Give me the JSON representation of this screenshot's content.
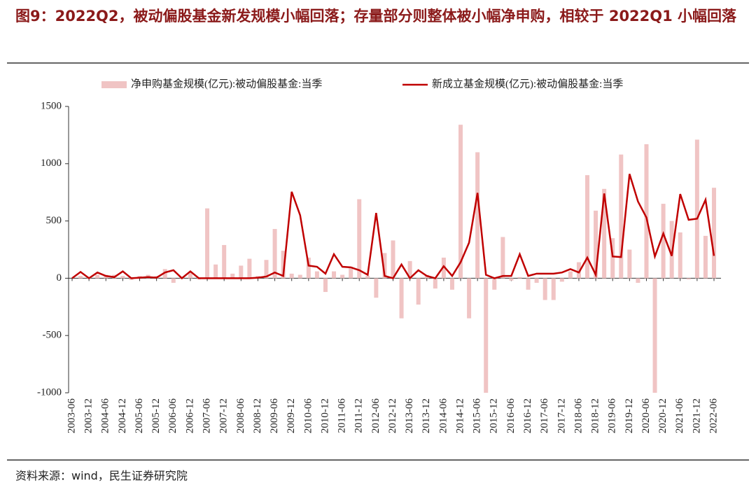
{
  "title": "图9：2022Q2，被动偏股基金新发规模小幅回落；存量部分则整体被小幅净申购，相较于 2022Q1 小幅回落",
  "source": "资料来源：wind，民生证券研究院",
  "chart_data": {
    "type": "bar-line",
    "categories": [
      "2003-06",
      null,
      "2003-12",
      null,
      "2004-06",
      null,
      "2004-12",
      null,
      "2005-06",
      null,
      "2005-12",
      null,
      "2006-06",
      null,
      "2006-12",
      null,
      "2007-06",
      null,
      "2007-12",
      null,
      "2008-06",
      null,
      "2008-12",
      null,
      "2009-06",
      null,
      "2009-12",
      null,
      "2010-06",
      null,
      "2010-12",
      null,
      "2011-06",
      null,
      "2011-12",
      null,
      "2012-06",
      null,
      "2012-12",
      null,
      "2013-06",
      null,
      "2013-12",
      null,
      "2014-06",
      null,
      "2014-12",
      null,
      "2015-06",
      null,
      "2015-12",
      null,
      "2016-06",
      null,
      "2016-12",
      null,
      "2017-06",
      null,
      "2017-12",
      null,
      "2018-06",
      null,
      "2018-12",
      null,
      "2019-06",
      null,
      "2019-12",
      null,
      "2020-06",
      null,
      "2020-12",
      null,
      "2021-06",
      null,
      "2021-12",
      null,
      "2022-06"
    ],
    "series": [
      {
        "name": "净申购基金规模(亿元):被动偏股基金:当季",
        "type": "bar",
        "color": "#f0c4c4",
        "values": [
          0,
          20,
          5,
          30,
          30,
          30,
          20,
          -15,
          20,
          30,
          20,
          80,
          -40,
          10,
          50,
          -10,
          610,
          120,
          290,
          40,
          110,
          170,
          20,
          160,
          430,
          240,
          40,
          30,
          180,
          60,
          -120,
          60,
          30,
          100,
          690,
          20,
          -170,
          220,
          330,
          -350,
          150,
          -230,
          30,
          -90,
          180,
          -100,
          1340,
          -350,
          1100,
          -1000,
          -100,
          360,
          -20,
          10,
          -100,
          -40,
          -190,
          -190,
          -30,
          60,
          140,
          900,
          590,
          780,
          350,
          1080,
          250,
          -40,
          1170,
          -1000,
          650,
          500,
          400,
          -10,
          1210,
          370,
          790
        ]
      },
      {
        "name": "新成立基金规模(亿元):被动偏股基金:当季",
        "type": "line",
        "color": "#c00000",
        "values": [
          0,
          55,
          0,
          50,
          20,
          10,
          60,
          0,
          5,
          10,
          5,
          50,
          70,
          0,
          60,
          0,
          0,
          0,
          0,
          0,
          0,
          0,
          5,
          15,
          50,
          20,
          755,
          550,
          110,
          100,
          40,
          210,
          100,
          95,
          70,
          30,
          570,
          20,
          0,
          120,
          0,
          70,
          20,
          0,
          105,
          20,
          140,
          310,
          745,
          30,
          0,
          20,
          20,
          210,
          20,
          40,
          40,
          40,
          50,
          80,
          50,
          180,
          30,
          740,
          190,
          185,
          910,
          670,
          530,
          190,
          390,
          195,
          735,
          510,
          520,
          685,
          195
        ]
      }
    ],
    "ylim": [
      -1000,
      1500
    ],
    "yticks": [
      -1000,
      -500,
      0,
      500,
      1000,
      1500
    ],
    "legend": "top"
  }
}
